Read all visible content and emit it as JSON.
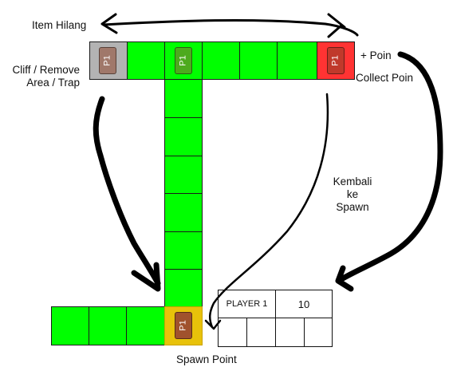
{
  "labels": {
    "item_hilang": "Item Hilang",
    "cliff_line1": "Cliff / Remove",
    "cliff_line2": "Area / Trap",
    "plus_poin": "+ Poin",
    "collect_poin": "Collect Poin",
    "kembali_line1": "Kembali ke",
    "kembali_line2": "Spawn",
    "spawn_point": "Spawn Point"
  },
  "token_label": "P1",
  "scoreboard": {
    "player": "PLAYER 1",
    "score": "10"
  },
  "colors": {
    "board_green": "#00ff00",
    "cliff_gray": "#b3b3b3",
    "collect_red": "#ff3333",
    "spawn_gold": "#e8c20a",
    "token_brown_light": "#a0786a",
    "token_green": "#4daa1e",
    "token_red": "#c0392b",
    "token_brown": "#a0522d"
  }
}
